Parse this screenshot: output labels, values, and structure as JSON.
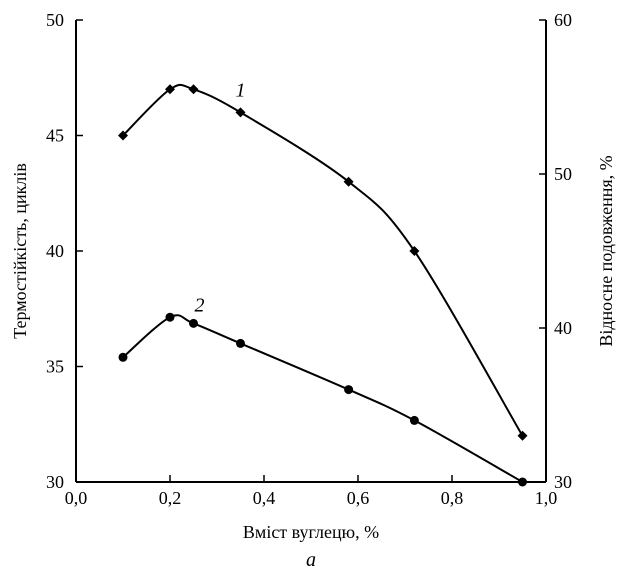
{
  "chart_data": {
    "type": "line",
    "xlabel": "Вміст вуглецю, %",
    "ylabel_left": "Термостійкість, циклів",
    "ylabel_right": "Відносне подовження, %",
    "caption": "а",
    "xlim": [
      0.0,
      1.0
    ],
    "ylim_left": [
      30,
      50
    ],
    "ylim_right": [
      30,
      60
    ],
    "x_ticks": [
      0.0,
      0.2,
      0.4,
      0.6,
      0.8,
      1.0
    ],
    "x_tick_labels": [
      "0,0",
      "0,2",
      "0,4",
      "0,6",
      "0,8",
      "1,0"
    ],
    "y_left_ticks": [
      30,
      35,
      40,
      45,
      50
    ],
    "y_left_tick_labels": [
      "30",
      "35",
      "40",
      "45",
      "50"
    ],
    "y_right_ticks": [
      30,
      40,
      50,
      60
    ],
    "y_right_tick_labels": [
      "30",
      "40",
      "50",
      "60"
    ],
    "grid": false,
    "series": [
      {
        "name": "1",
        "axis": "left",
        "marker": "diamond",
        "x": [
          0.1,
          0.2,
          0.25,
          0.35,
          0.58,
          0.72,
          0.95
        ],
        "y": [
          45.0,
          47.0,
          47.0,
          46.0,
          43.0,
          40.0,
          32.0
        ]
      },
      {
        "name": "2",
        "axis": "right",
        "marker": "circle",
        "x": [
          0.1,
          0.2,
          0.25,
          0.35,
          0.58,
          0.72,
          0.95
        ],
        "y": [
          38.1,
          40.7,
          40.3,
          39.0,
          36.0,
          34.0,
          30.0
        ]
      }
    ]
  }
}
